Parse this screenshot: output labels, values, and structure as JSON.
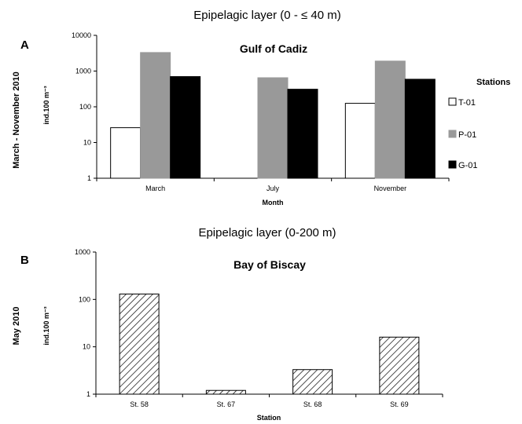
{
  "chart_data": [
    {
      "panel": "A",
      "type": "bar",
      "heading": "Epipelagic layer (0 - ≤ 40 m)",
      "title": "Gulf of Cadiz",
      "period": "March - November 2010",
      "ylabel": "ind.100 m⁻³",
      "xlabel": "Month",
      "yscale": "log",
      "ylim": [
        1,
        10000
      ],
      "yticks": [
        "1",
        "10",
        "100",
        "1000",
        "10000"
      ],
      "categories": [
        "March",
        "July",
        "November"
      ],
      "legend_title": "Stations",
      "legend_position": "right",
      "series": [
        {
          "name": "T-01",
          "color": "#ffffff",
          "values": [
            26,
            null,
            125
          ]
        },
        {
          "name": "P-01",
          "color": "#999999",
          "values": [
            3300,
            650,
            1900
          ]
        },
        {
          "name": "G-01",
          "color": "#000000",
          "values": [
            700,
            310,
            590
          ]
        }
      ]
    },
    {
      "panel": "B",
      "type": "bar",
      "heading": "Epipelagic layer (0-200 m)",
      "title": "Bay of Biscay",
      "period": "May 2010",
      "ylabel": "ind.100 m⁻³",
      "xlabel": "Station",
      "yscale": "log",
      "ylim": [
        1,
        1000
      ],
      "yticks": [
        "1",
        "10",
        "100",
        "1000"
      ],
      "categories": [
        "St. 58",
        "St. 67",
        "St. 68",
        "St. 69"
      ],
      "fill": "diagonal-hatch",
      "values": [
        130,
        1.2,
        3.3,
        16
      ]
    }
  ]
}
